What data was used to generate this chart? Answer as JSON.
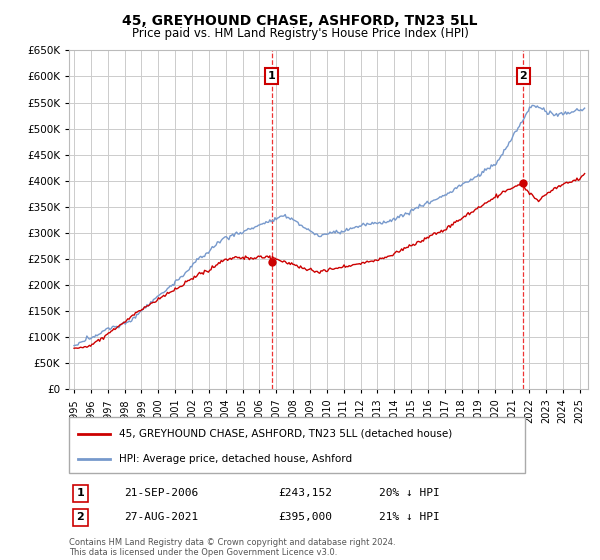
{
  "title": "45, GREYHOUND CHASE, ASHFORD, TN23 5LL",
  "subtitle": "Price paid vs. HM Land Registry's House Price Index (HPI)",
  "ylim": [
    0,
    650000
  ],
  "yticks": [
    0,
    50000,
    100000,
    150000,
    200000,
    250000,
    300000,
    350000,
    400000,
    450000,
    500000,
    550000,
    600000,
    650000
  ],
  "xlim_start": 1994.7,
  "xlim_end": 2025.5,
  "sale1": {
    "date_num": 2006.72,
    "price": 243152,
    "label": "1",
    "date_str": "21-SEP-2006",
    "pct": "20% ↓ HPI"
  },
  "sale2": {
    "date_num": 2021.66,
    "price": 395000,
    "label": "2",
    "date_str": "27-AUG-2021",
    "pct": "21% ↓ HPI"
  },
  "vline_color": "#ee3333",
  "vline_style": "--",
  "red_line_color": "#cc0000",
  "blue_line_color": "#7799cc",
  "grid_color": "#cccccc",
  "background_color": "#ffffff",
  "legend_label_red": "45, GREYHOUND CHASE, ASHFORD, TN23 5LL (detached house)",
  "legend_label_blue": "HPI: Average price, detached house, Ashford",
  "footer": "Contains HM Land Registry data © Crown copyright and database right 2024.\nThis data is licensed under the Open Government Licence v3.0.",
  "annotation_box_color": "#cc0000",
  "fig_width": 6.0,
  "fig_height": 5.6,
  "dpi": 100
}
